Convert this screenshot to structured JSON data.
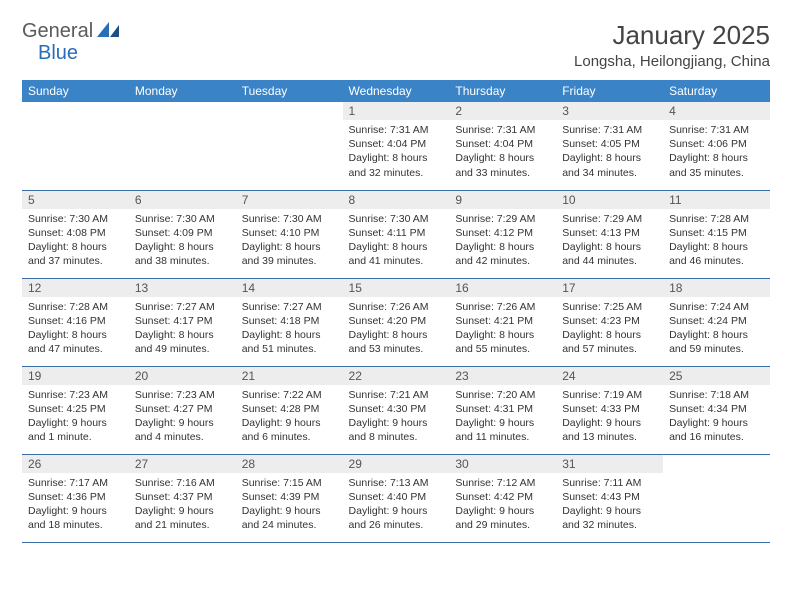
{
  "logo": {
    "textGeneral": "General",
    "textBlue": "Blue"
  },
  "title": "January 2025",
  "location": "Longsha, Heilongjiang, China",
  "colors": {
    "headerBg": "#3a83c6",
    "headerText": "#ffffff",
    "dayNumBg": "#ededed",
    "borderColor": "#3a6ea5",
    "logoBlue": "#2a6db8",
    "logoGrey": "#5a5a5a",
    "bodyText": "#333333"
  },
  "week_headers": [
    "Sunday",
    "Monday",
    "Tuesday",
    "Wednesday",
    "Thursday",
    "Friday",
    "Saturday"
  ],
  "weeks": [
    [
      null,
      null,
      null,
      {
        "n": "1",
        "sr": "7:31 AM",
        "ss": "4:04 PM",
        "dl": "8 hours and 32 minutes."
      },
      {
        "n": "2",
        "sr": "7:31 AM",
        "ss": "4:04 PM",
        "dl": "8 hours and 33 minutes."
      },
      {
        "n": "3",
        "sr": "7:31 AM",
        "ss": "4:05 PM",
        "dl": "8 hours and 34 minutes."
      },
      {
        "n": "4",
        "sr": "7:31 AM",
        "ss": "4:06 PM",
        "dl": "8 hours and 35 minutes."
      }
    ],
    [
      {
        "n": "5",
        "sr": "7:30 AM",
        "ss": "4:08 PM",
        "dl": "8 hours and 37 minutes."
      },
      {
        "n": "6",
        "sr": "7:30 AM",
        "ss": "4:09 PM",
        "dl": "8 hours and 38 minutes."
      },
      {
        "n": "7",
        "sr": "7:30 AM",
        "ss": "4:10 PM",
        "dl": "8 hours and 39 minutes."
      },
      {
        "n": "8",
        "sr": "7:30 AM",
        "ss": "4:11 PM",
        "dl": "8 hours and 41 minutes."
      },
      {
        "n": "9",
        "sr": "7:29 AM",
        "ss": "4:12 PM",
        "dl": "8 hours and 42 minutes."
      },
      {
        "n": "10",
        "sr": "7:29 AM",
        "ss": "4:13 PM",
        "dl": "8 hours and 44 minutes."
      },
      {
        "n": "11",
        "sr": "7:28 AM",
        "ss": "4:15 PM",
        "dl": "8 hours and 46 minutes."
      }
    ],
    [
      {
        "n": "12",
        "sr": "7:28 AM",
        "ss": "4:16 PM",
        "dl": "8 hours and 47 minutes."
      },
      {
        "n": "13",
        "sr": "7:27 AM",
        "ss": "4:17 PM",
        "dl": "8 hours and 49 minutes."
      },
      {
        "n": "14",
        "sr": "7:27 AM",
        "ss": "4:18 PM",
        "dl": "8 hours and 51 minutes."
      },
      {
        "n": "15",
        "sr": "7:26 AM",
        "ss": "4:20 PM",
        "dl": "8 hours and 53 minutes."
      },
      {
        "n": "16",
        "sr": "7:26 AM",
        "ss": "4:21 PM",
        "dl": "8 hours and 55 minutes."
      },
      {
        "n": "17",
        "sr": "7:25 AM",
        "ss": "4:23 PM",
        "dl": "8 hours and 57 minutes."
      },
      {
        "n": "18",
        "sr": "7:24 AM",
        "ss": "4:24 PM",
        "dl": "8 hours and 59 minutes."
      }
    ],
    [
      {
        "n": "19",
        "sr": "7:23 AM",
        "ss": "4:25 PM",
        "dl": "9 hours and 1 minute."
      },
      {
        "n": "20",
        "sr": "7:23 AM",
        "ss": "4:27 PM",
        "dl": "9 hours and 4 minutes."
      },
      {
        "n": "21",
        "sr": "7:22 AM",
        "ss": "4:28 PM",
        "dl": "9 hours and 6 minutes."
      },
      {
        "n": "22",
        "sr": "7:21 AM",
        "ss": "4:30 PM",
        "dl": "9 hours and 8 minutes."
      },
      {
        "n": "23",
        "sr": "7:20 AM",
        "ss": "4:31 PM",
        "dl": "9 hours and 11 minutes."
      },
      {
        "n": "24",
        "sr": "7:19 AM",
        "ss": "4:33 PM",
        "dl": "9 hours and 13 minutes."
      },
      {
        "n": "25",
        "sr": "7:18 AM",
        "ss": "4:34 PM",
        "dl": "9 hours and 16 minutes."
      }
    ],
    [
      {
        "n": "26",
        "sr": "7:17 AM",
        "ss": "4:36 PM",
        "dl": "9 hours and 18 minutes."
      },
      {
        "n": "27",
        "sr": "7:16 AM",
        "ss": "4:37 PM",
        "dl": "9 hours and 21 minutes."
      },
      {
        "n": "28",
        "sr": "7:15 AM",
        "ss": "4:39 PM",
        "dl": "9 hours and 24 minutes."
      },
      {
        "n": "29",
        "sr": "7:13 AM",
        "ss": "4:40 PM",
        "dl": "9 hours and 26 minutes."
      },
      {
        "n": "30",
        "sr": "7:12 AM",
        "ss": "4:42 PM",
        "dl": "9 hours and 29 minutes."
      },
      {
        "n": "31",
        "sr": "7:11 AM",
        "ss": "4:43 PM",
        "dl": "9 hours and 32 minutes."
      },
      null
    ]
  ],
  "labels": {
    "sunrise": "Sunrise:",
    "sunset": "Sunset:",
    "daylight": "Daylight:"
  }
}
